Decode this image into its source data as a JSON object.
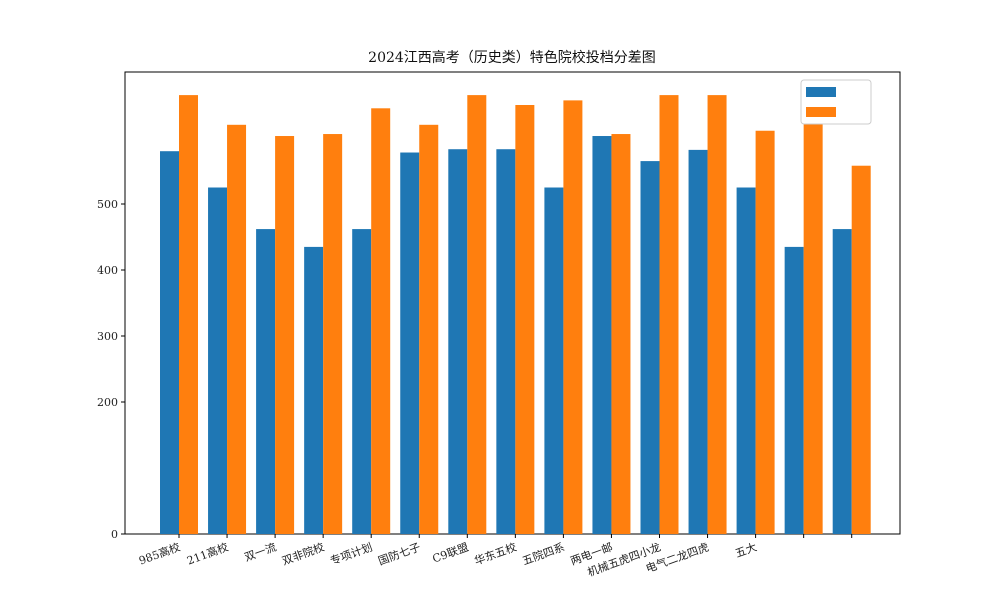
{
  "chart_data": {
    "type": "bar",
    "title": "2024江西高考（历史类）特色院校投档分差图",
    "xlabel": "",
    "ylabel": "",
    "categories": [
      "985高校",
      "211高校",
      "双一流",
      "双非院校",
      "专项计划",
      "国防七子",
      "C9联盟",
      "华东五校",
      "五院四系",
      "两电一邮",
      "机械五虎四小龙",
      "电气二龙四虎",
      "五大",
      "",
      ""
    ],
    "series": [
      {
        "name": "",
        "color": "#1f77b4",
        "values": [
          580,
          525,
          462,
          435,
          462,
          578,
          583,
          583,
          525,
          603,
          565,
          582,
          525,
          435,
          462
        ]
      },
      {
        "name": "",
        "color": "#ff7f0e",
        "values": [
          665,
          620,
          603,
          606,
          645,
          620,
          665,
          650,
          657,
          606,
          665,
          665,
          611,
          665,
          558
        ]
      }
    ],
    "ylim": [
      0,
      700
    ],
    "yticks": [
      0,
      200,
      300,
      400,
      500
    ],
    "grid": false,
    "legend_position": "top-right"
  }
}
